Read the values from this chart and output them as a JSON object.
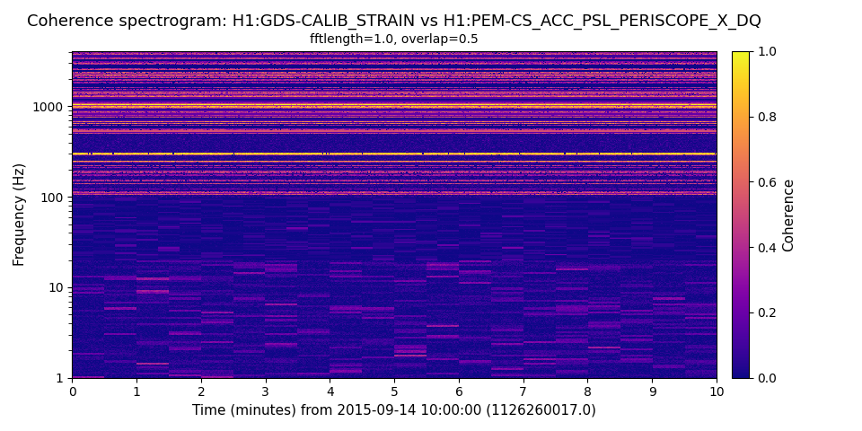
{
  "title": "Coherence spectrogram: H1:GDS-CALIB_STRAIN vs H1:PEM-CS_ACC_PSL_PERISCOPE_X_DQ",
  "subtitle": "fftlength=1.0, overlap=0.5",
  "xlabel": "Time (minutes) from 2015-09-14 10:00:00 (1126260017.0)",
  "ylabel": "Frequency (Hz)",
  "colorbar_label": "Coherence",
  "xlim": [
    0,
    10
  ],
  "ylim": [
    1,
    4096
  ],
  "clim": [
    0.0,
    1.0
  ],
  "colormap": "plasma",
  "t_minutes": 10,
  "f_min": 1,
  "f_max": 4096,
  "n_times": 600,
  "n_freqs": 500,
  "highlight_freq": 300,
  "title_fontsize": 13,
  "subtitle_fontsize": 10,
  "label_fontsize": 11,
  "tick_fontsize": 10,
  "background_color": "#ffffff"
}
